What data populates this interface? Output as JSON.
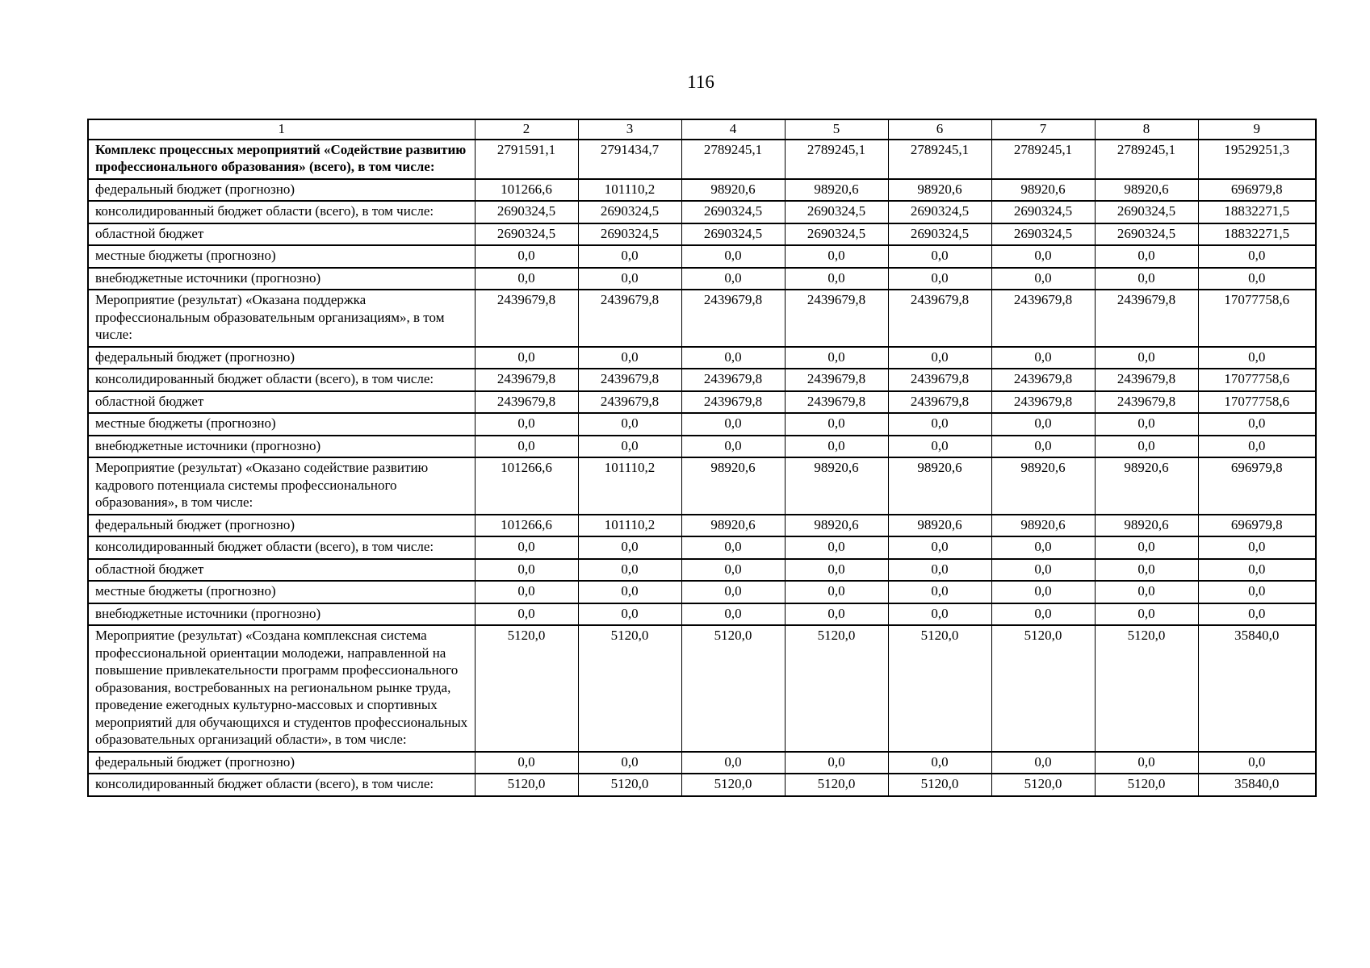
{
  "page": {
    "number": "116"
  },
  "table": {
    "column_headers": [
      "1",
      "2",
      "3",
      "4",
      "5",
      "6",
      "7",
      "8",
      "9"
    ],
    "rows": [
      {
        "label": "Комплекс процессных мероприятий «Содействие развитию профессионального образования» (всего), в том числе:",
        "bold": true,
        "values": [
          "2791591,1",
          "2791434,7",
          "2789245,1",
          "2789245,1",
          "2789245,1",
          "2789245,1",
          "2789245,1",
          "19529251,3"
        ]
      },
      {
        "label": "федеральный бюджет (прогнозно)",
        "bold": false,
        "values": [
          "101266,6",
          "101110,2",
          "98920,6",
          "98920,6",
          "98920,6",
          "98920,6",
          "98920,6",
          "696979,8"
        ]
      },
      {
        "label": "консолидированный бюджет области (всего), в том числе:",
        "bold": false,
        "values": [
          "2690324,5",
          "2690324,5",
          "2690324,5",
          "2690324,5",
          "2690324,5",
          "2690324,5",
          "2690324,5",
          "18832271,5"
        ]
      },
      {
        "label": "областной бюджет",
        "bold": false,
        "values": [
          "2690324,5",
          "2690324,5",
          "2690324,5",
          "2690324,5",
          "2690324,5",
          "2690324,5",
          "2690324,5",
          "18832271,5"
        ]
      },
      {
        "label": "местные бюджеты (прогнозно)",
        "bold": false,
        "values": [
          "0,0",
          "0,0",
          "0,0",
          "0,0",
          "0,0",
          "0,0",
          "0,0",
          "0,0"
        ]
      },
      {
        "label": "внебюджетные источники (прогнозно)",
        "bold": false,
        "values": [
          "0,0",
          "0,0",
          "0,0",
          "0,0",
          "0,0",
          "0,0",
          "0,0",
          "0,0"
        ]
      },
      {
        "label": "Мероприятие (результат) «Оказана поддержка профессиональным образовательным организациям», в том числе:",
        "bold": false,
        "values": [
          "2439679,8",
          "2439679,8",
          "2439679,8",
          "2439679,8",
          "2439679,8",
          "2439679,8",
          "2439679,8",
          "17077758,6"
        ]
      },
      {
        "label": "федеральный бюджет (прогнозно)",
        "bold": false,
        "values": [
          "0,0",
          "0,0",
          "0,0",
          "0,0",
          "0,0",
          "0,0",
          "0,0",
          "0,0"
        ]
      },
      {
        "label": "консолидированный бюджет области (всего), в том числе:",
        "bold": false,
        "values": [
          "2439679,8",
          "2439679,8",
          "2439679,8",
          "2439679,8",
          "2439679,8",
          "2439679,8",
          "2439679,8",
          "17077758,6"
        ]
      },
      {
        "label": "областной бюджет",
        "bold": false,
        "values": [
          "2439679,8",
          "2439679,8",
          "2439679,8",
          "2439679,8",
          "2439679,8",
          "2439679,8",
          "2439679,8",
          "17077758,6"
        ]
      },
      {
        "label": "местные бюджеты (прогнозно)",
        "bold": false,
        "values": [
          "0,0",
          "0,0",
          "0,0",
          "0,0",
          "0,0",
          "0,0",
          "0,0",
          "0,0"
        ]
      },
      {
        "label": "внебюджетные источники (прогнозно)",
        "bold": false,
        "values": [
          "0,0",
          "0,0",
          "0,0",
          "0,0",
          "0,0",
          "0,0",
          "0,0",
          "0,0"
        ]
      },
      {
        "label": "Мероприятие (результат) «Оказано содействие развитию кадрового потенциала системы профессионального образования», в том числе:",
        "bold": false,
        "values": [
          "101266,6",
          "101110,2",
          "98920,6",
          "98920,6",
          "98920,6",
          "98920,6",
          "98920,6",
          "696979,8"
        ]
      },
      {
        "label": "федеральный бюджет (прогнозно)",
        "bold": false,
        "values": [
          "101266,6",
          "101110,2",
          "98920,6",
          "98920,6",
          "98920,6",
          "98920,6",
          "98920,6",
          "696979,8"
        ]
      },
      {
        "label": "консолидированный бюджет области (всего), в том числе:",
        "bold": false,
        "values": [
          "0,0",
          "0,0",
          "0,0",
          "0,0",
          "0,0",
          "0,0",
          "0,0",
          "0,0"
        ]
      },
      {
        "label": "областной бюджет",
        "bold": false,
        "values": [
          "0,0",
          "0,0",
          "0,0",
          "0,0",
          "0,0",
          "0,0",
          "0,0",
          "0,0"
        ]
      },
      {
        "label": "местные бюджеты (прогнозно)",
        "bold": false,
        "values": [
          "0,0",
          "0,0",
          "0,0",
          "0,0",
          "0,0",
          "0,0",
          "0,0",
          "0,0"
        ]
      },
      {
        "label": "внебюджетные источники (прогнозно)",
        "bold": false,
        "values": [
          "0,0",
          "0,0",
          "0,0",
          "0,0",
          "0,0",
          "0,0",
          "0,0",
          "0,0"
        ]
      },
      {
        "label": "Мероприятие (результат) «Создана комплексная система профессиональной ориентации молодежи, направленной на повышение привлекательности программ профессионального образования, востребованных на региональном рынке труда, проведение ежегодных культурно-массовых и спортивных мероприятий для обучающихся и студентов профессиональных образовательных организаций области», в том числе:",
        "bold": false,
        "values": [
          "5120,0",
          "5120,0",
          "5120,0",
          "5120,0",
          "5120,0",
          "5120,0",
          "5120,0",
          "35840,0"
        ]
      },
      {
        "label": "федеральный бюджет (прогнозно)",
        "bold": false,
        "values": [
          "0,0",
          "0,0",
          "0,0",
          "0,0",
          "0,0",
          "0,0",
          "0,0",
          "0,0"
        ]
      },
      {
        "label": "консолидированный бюджет области (всего), в том числе:",
        "bold": false,
        "values": [
          "5120,0",
          "5120,0",
          "5120,0",
          "5120,0",
          "5120,0",
          "5120,0",
          "5120,0",
          "35840,0"
        ]
      }
    ]
  }
}
